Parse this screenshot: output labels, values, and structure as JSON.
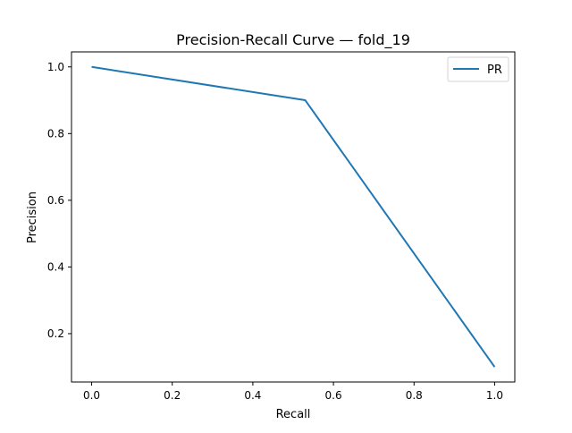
{
  "chart_data": {
    "type": "line",
    "title": "Precision-Recall Curve — fold_19",
    "xlabel": "Recall",
    "ylabel": "Precision",
    "xlim": [
      -0.05,
      1.05
    ],
    "ylim": [
      0.055,
      1.045
    ],
    "xticks": [
      0.0,
      0.2,
      0.4,
      0.6,
      0.8,
      1.0
    ],
    "xtick_labels": [
      "0.0",
      "0.2",
      "0.4",
      "0.6",
      "0.8",
      "1.0"
    ],
    "yticks": [
      0.2,
      0.4,
      0.6,
      0.8,
      1.0
    ],
    "ytick_labels": [
      "0.2",
      "0.4",
      "0.6",
      "0.8",
      "1.0"
    ],
    "grid": false,
    "legend": {
      "position": "top-right"
    },
    "series": [
      {
        "name": "PR",
        "color": "#1f77b4",
        "x": [
          0.0,
          0.53,
          1.0
        ],
        "y": [
          1.0,
          0.9,
          0.1
        ]
      }
    ]
  }
}
